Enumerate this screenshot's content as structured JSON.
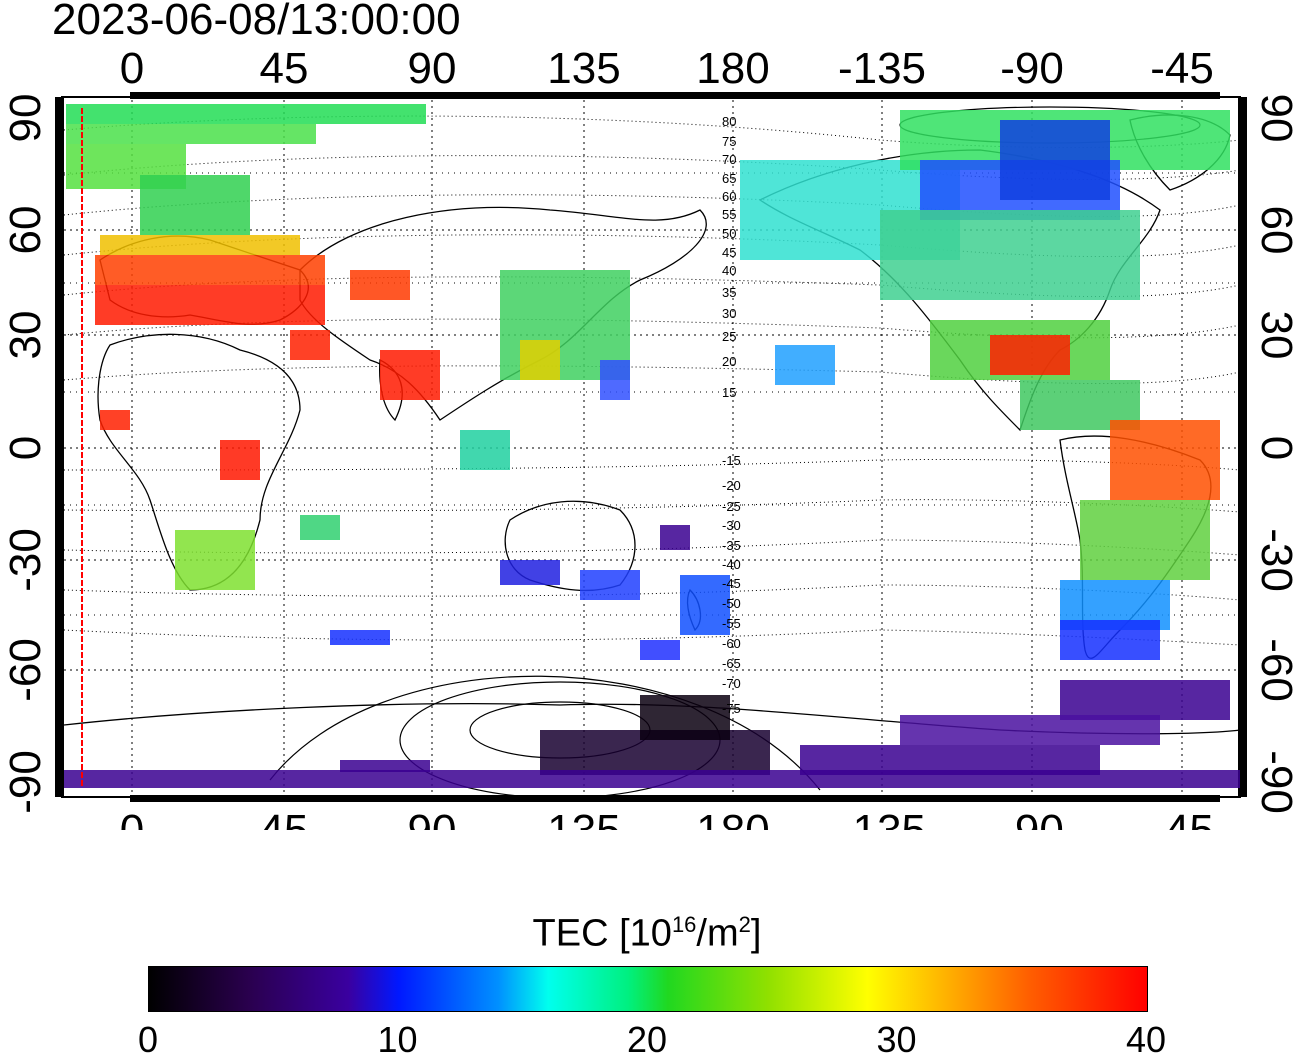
{
  "timestamp": "2023-06-08/13:00:00",
  "axes": {
    "lon_ticks": [
      "0",
      "45",
      "90",
      "135",
      "180",
      "-135",
      "-90",
      "-45"
    ],
    "lat_ticks": [
      "90",
      "60",
      "30",
      "0",
      "-30",
      "-60",
      "-90"
    ]
  },
  "contour_labels_north": [
    "80",
    "75",
    "70",
    "65",
    "60",
    "55",
    "50",
    "45",
    "40",
    "35",
    "30",
    "25",
    "20",
    "15"
  ],
  "contour_labels_south": [
    "-15",
    "-20",
    "-25",
    "-30",
    "-35",
    "-40",
    "-45",
    "-50",
    "-55",
    "-60",
    "-65",
    "-70",
    "-75"
  ],
  "colorbar": {
    "title_main": "TEC  [10",
    "title_sup1": "16",
    "title_mid": "/m",
    "title_sup2": "2",
    "title_end": "]",
    "min": 0,
    "max": 40,
    "ticks": [
      "0",
      "10",
      "20",
      "30",
      "40"
    ]
  },
  "colors": {
    "red_marker": "#ff0000"
  }
}
